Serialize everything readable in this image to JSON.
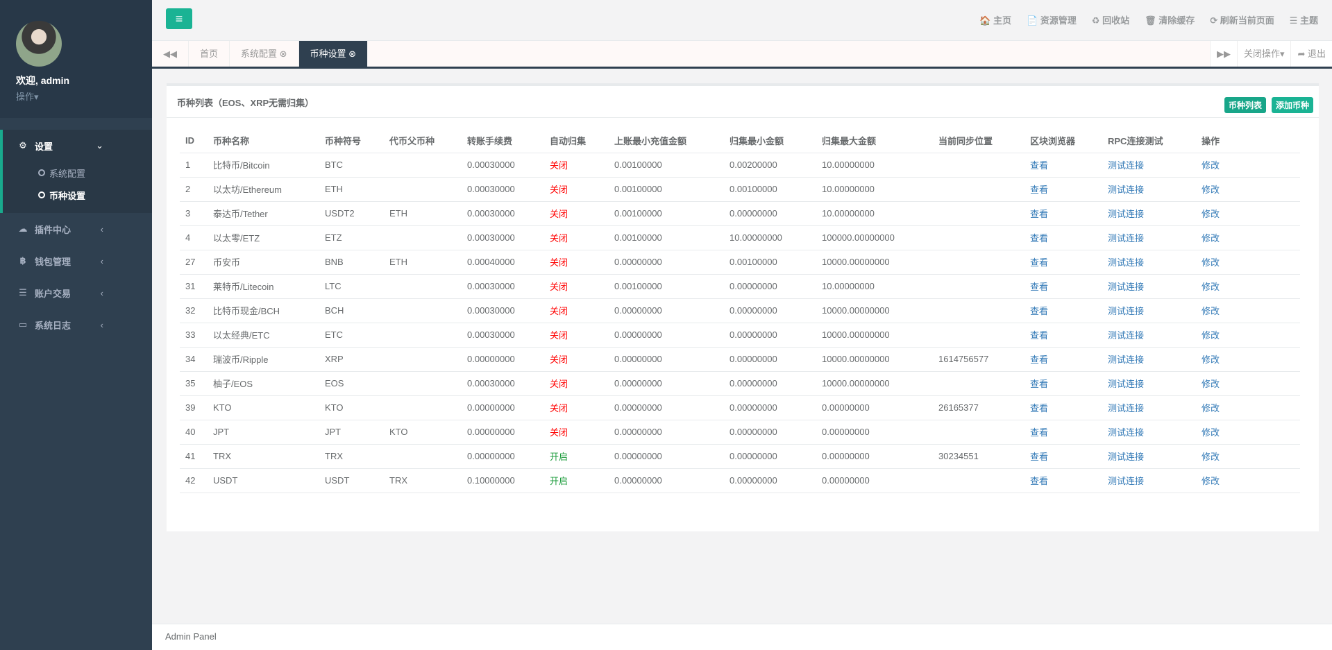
{
  "sidebar": {
    "welcome": "欢迎, admin",
    "ops": "操作▾",
    "menu": [
      {
        "label": "设置",
        "icon": "⚙"
      },
      {
        "label": "插件中心",
        "icon": "☁"
      },
      {
        "label": "钱包管理",
        "icon": "฿"
      },
      {
        "label": "账户交易",
        "icon": "☰"
      },
      {
        "label": "系统日志",
        "icon": "▭"
      }
    ],
    "sub": [
      "系统配置",
      "币种设置"
    ]
  },
  "topbar": {
    "links": [
      "🏠 主页",
      "📄 资源管理",
      "♻ 回收站",
      "🗑 清除缓存",
      "⟳ 刷新当前页面",
      "☰ 主题"
    ]
  },
  "tabs": {
    "items": [
      "首页",
      "系统配置 ⊗",
      "币种设置 ⊗"
    ],
    "close_ops": "关闭操作▾",
    "logout": "➦ 退出"
  },
  "panel": {
    "title": "币种列表（EOS、XRP无需归集）",
    "btn_list": "币种列表",
    "btn_add": "添加币种"
  },
  "table": {
    "headers": [
      "ID",
      "币种名称",
      "币种符号",
      "代币父币种",
      "转账手续费",
      "自动归集",
      "上账最小充值金额",
      "归集最小金额",
      "归集最大金额",
      "当前同步位置",
      "区块浏览器",
      "RPC连接测试",
      "操作"
    ],
    "rows": [
      [
        "1",
        "比特币/Bitcoin",
        "BTC",
        "",
        "0.00030000",
        "关闭",
        "0.00100000",
        "0.00200000",
        "10.00000000",
        "",
        "查看",
        "测试连接",
        "修改"
      ],
      [
        "2",
        "以太坊/Ethereum",
        "ETH",
        "",
        "0.00030000",
        "关闭",
        "0.00100000",
        "0.00100000",
        "10.00000000",
        "",
        "查看",
        "测试连接",
        "修改"
      ],
      [
        "3",
        "泰达币/Tether",
        "USDT2",
        "ETH",
        "0.00030000",
        "关闭",
        "0.00100000",
        "0.00000000",
        "10.00000000",
        "",
        "查看",
        "测试连接",
        "修改"
      ],
      [
        "4",
        "以太零/ETZ",
        "ETZ",
        "",
        "0.00030000",
        "关闭",
        "0.00100000",
        "10.00000000",
        "100000.00000000",
        "",
        "查看",
        "测试连接",
        "修改"
      ],
      [
        "27",
        "币安币",
        "BNB",
        "ETH",
        "0.00040000",
        "关闭",
        "0.00000000",
        "0.00100000",
        "10000.00000000",
        "",
        "查看",
        "测试连接",
        "修改"
      ],
      [
        "31",
        "莱特币/Litecoin",
        "LTC",
        "",
        "0.00030000",
        "关闭",
        "0.00100000",
        "0.00000000",
        "10.00000000",
        "",
        "查看",
        "测试连接",
        "修改"
      ],
      [
        "32",
        "比特币现金/BCH",
        "BCH",
        "",
        "0.00030000",
        "关闭",
        "0.00000000",
        "0.00000000",
        "10000.00000000",
        "",
        "查看",
        "测试连接",
        "修改"
      ],
      [
        "33",
        "以太经典/ETC",
        "ETC",
        "",
        "0.00030000",
        "关闭",
        "0.00000000",
        "0.00000000",
        "10000.00000000",
        "",
        "查看",
        "测试连接",
        "修改"
      ],
      [
        "34",
        "瑞波币/Ripple",
        "XRP",
        "",
        "0.00000000",
        "关闭",
        "0.00000000",
        "0.00000000",
        "10000.00000000",
        "1614756577",
        "查看",
        "测试连接",
        "修改"
      ],
      [
        "35",
        "柚子/EOS",
        "EOS",
        "",
        "0.00030000",
        "关闭",
        "0.00000000",
        "0.00000000",
        "10000.00000000",
        "",
        "查看",
        "测试连接",
        "修改"
      ],
      [
        "39",
        "KTO",
        "KTO",
        "",
        "0.00000000",
        "关闭",
        "0.00000000",
        "0.00000000",
        "0.00000000",
        "26165377",
        "查看",
        "测试连接",
        "修改"
      ],
      [
        "40",
        "JPT",
        "JPT",
        "KTO",
        "0.00000000",
        "关闭",
        "0.00000000",
        "0.00000000",
        "0.00000000",
        "",
        "查看",
        "测试连接",
        "修改"
      ],
      [
        "41",
        "TRX",
        "TRX",
        "",
        "0.00000000",
        "开启",
        "0.00000000",
        "0.00000000",
        "0.00000000",
        "30234551",
        "查看",
        "测试连接",
        "修改"
      ],
      [
        "42",
        "USDT",
        "USDT",
        "TRX",
        "0.10000000",
        "开启",
        "0.00000000",
        "0.00000000",
        "0.00000000",
        "",
        "查看",
        "测试连接",
        "修改"
      ]
    ]
  },
  "footer": "Admin Panel"
}
